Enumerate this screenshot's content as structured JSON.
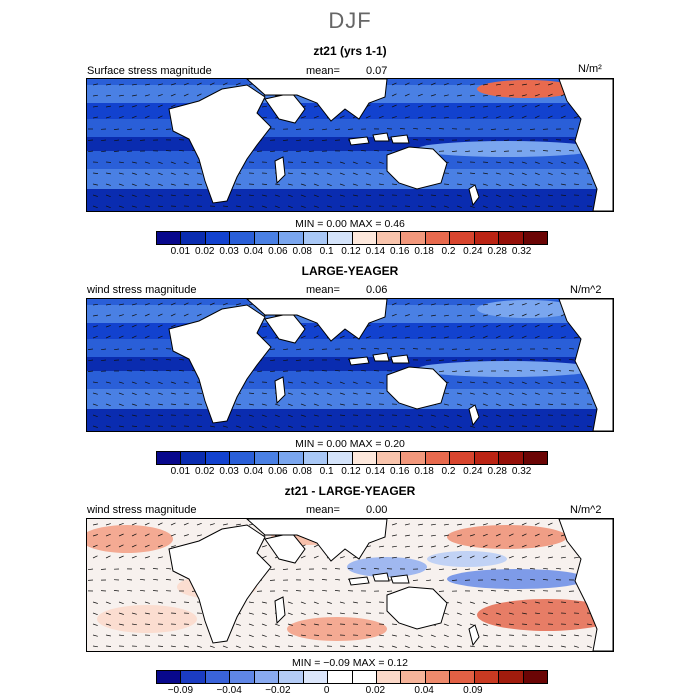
{
  "page_title": "DJF",
  "panels": [
    {
      "title": "zt21 (yrs 1-1)",
      "left_label": "Surface stress magnitude",
      "mean_label": "mean=",
      "mean_value": "0.07",
      "units": "N/m²",
      "min_label": "MIN =",
      "min_value": "0.00",
      "max_label": "MAX =",
      "max_value": "0.46",
      "tick_labels": [
        "0.01",
        "0.02",
        "0.03",
        "0.04",
        "0.06",
        "0.08",
        "0.1",
        "0.12",
        "0.14",
        "0.16",
        "0.18",
        "0.2",
        "0.24",
        "0.28",
        "0.32"
      ],
      "palette": [
        "#08088c",
        "#0a2cb0",
        "#1242cf",
        "#2a5fd8",
        "#4a80e4",
        "#7aa6ef",
        "#a9c8f6",
        "#d4e3fa",
        "#fde8dc",
        "#f9c4ac",
        "#f2987c",
        "#e86a4e",
        "#d8452e",
        "#bb2414",
        "#951009",
        "#6b0505"
      ]
    },
    {
      "title": "LARGE-YEAGER",
      "left_label": "wind stress magnitude",
      "mean_label": "mean=",
      "mean_value": "0.06",
      "units": "N/m^2",
      "min_label": "MIN =",
      "min_value": "0.00",
      "max_label": "MAX =",
      "max_value": "0.20",
      "tick_labels": [
        "0.01",
        "0.02",
        "0.03",
        "0.04",
        "0.06",
        "0.08",
        "0.1",
        "0.12",
        "0.14",
        "0.16",
        "0.18",
        "0.2",
        "0.24",
        "0.28",
        "0.32"
      ],
      "palette": [
        "#08088c",
        "#0a2cb0",
        "#1242cf",
        "#2a5fd8",
        "#4a80e4",
        "#7aa6ef",
        "#a9c8f6",
        "#d4e3fa",
        "#fde8dc",
        "#f9c4ac",
        "#f2987c",
        "#e86a4e",
        "#d8452e",
        "#bb2414",
        "#951009",
        "#6b0505"
      ]
    },
    {
      "title": "zt21 - LARGE-YEAGER",
      "left_label": "wind stress magnitude",
      "mean_label": "mean=",
      "mean_value": "0.00",
      "units": "N/m^2",
      "min_label": "MIN =",
      "min_value": "−0.09",
      "max_label": "MAX =",
      "max_value": "0.12",
      "tick_labels": [
        "−0.09",
        "−0.04",
        "−0.02",
        "0",
        "0.02",
        "0.04",
        "0.09"
      ],
      "tick_slots": [
        1,
        3,
        5,
        7,
        9,
        11,
        13
      ],
      "palette": [
        "#08088c",
        "#1b3cc2",
        "#3a63da",
        "#5f86e6",
        "#89aaf0",
        "#b3cbf6",
        "#dbe6fb",
        "#ffffff",
        "#ffffff",
        "#fbd8c8",
        "#f6b49a",
        "#ee8a6c",
        "#e26044",
        "#c83a22",
        "#a11c0d",
        "#6b0505"
      ]
    }
  ],
  "chart_data": [
    {
      "type": "heatmap",
      "title": "zt21 (yrs 1-1)",
      "variable": "Surface stress magnitude",
      "units": "N/m²",
      "mean": 0.07,
      "min": 0.0,
      "max": 0.46,
      "colorbar_levels": [
        0.01,
        0.02,
        0.03,
        0.04,
        0.06,
        0.08,
        0.1,
        0.12,
        0.14,
        0.16,
        0.18,
        0.2,
        0.24,
        0.28,
        0.32
      ],
      "vectors": true
    },
    {
      "type": "heatmap",
      "title": "LARGE-YEAGER",
      "variable": "wind stress magnitude",
      "units": "N/m^2",
      "mean": 0.06,
      "min": 0.0,
      "max": 0.2,
      "colorbar_levels": [
        0.01,
        0.02,
        0.03,
        0.04,
        0.06,
        0.08,
        0.1,
        0.12,
        0.14,
        0.16,
        0.18,
        0.2,
        0.24,
        0.28,
        0.32
      ],
      "vectors": true
    },
    {
      "type": "heatmap",
      "title": "zt21 - LARGE-YEAGER",
      "variable": "wind stress magnitude",
      "units": "N/m^2",
      "mean": 0.0,
      "min": -0.09,
      "max": 0.12,
      "colorbar_levels": [
        -0.09,
        -0.04,
        -0.02,
        0,
        0.02,
        0.04,
        0.09
      ],
      "vectors": true
    }
  ]
}
